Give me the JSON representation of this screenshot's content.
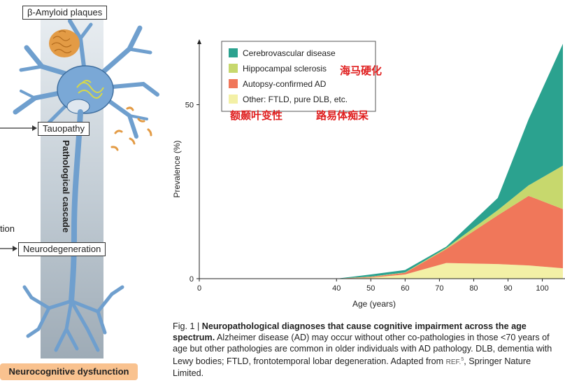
{
  "diagram": {
    "plaques_label": "β-Amyloid plaques",
    "tau_label": "Tauopathy",
    "cascade_label": "Pathological cascade",
    "neurodegeneration_label": "Neurodegeneration",
    "side_label_partial": "tion",
    "outcome_label": "Neurocognitive dysfunction",
    "colors": {
      "neuron": "#6f9fce",
      "neuron_dark": "#3f6e9e",
      "plaque": "#e39b45",
      "tangle": "#d6d84a",
      "outcome_bg": "#f9c28f",
      "cascade_bar": "#b9c4cc"
    }
  },
  "annotations": {
    "hippocampal_cn": "海马硬化",
    "ftld_cn": "额颞叶变性",
    "dlb_cn": "路易体痴呆"
  },
  "chart_data": {
    "type": "area",
    "stacked": true,
    "xlabel": "Age (years)",
    "ylabel": "Prevalence (%)",
    "xlim": [
      0,
      106
    ],
    "ylim": [
      0,
      67
    ],
    "xticks": [
      0,
      40,
      50,
      60,
      70,
      80,
      90,
      100
    ],
    "yticks": [
      0,
      50
    ],
    "x": [
      40,
      50,
      60,
      72,
      87,
      96,
      106
    ],
    "series": [
      {
        "name": "Other: FTLD, pure DLB, etc.",
        "color": "#f3f0a6",
        "values": [
          0,
          0.3,
          1.2,
          4.5,
          4.2,
          3.8,
          3.0
        ]
      },
      {
        "name": "Autopsy-confirmed AD",
        "color": "#f0775a",
        "values": [
          0,
          0.2,
          0.5,
          4.0,
          14.0,
          20.0,
          17.0
        ]
      },
      {
        "name": "Hippocampal sclerosis",
        "color": "#c7d86d",
        "values": [
          0,
          0.1,
          0.1,
          0.3,
          1.5,
          3.0,
          12.5
        ]
      },
      {
        "name": "Cerebrovascular disease",
        "color": "#2ba28f",
        "values": [
          0,
          0.6,
          0.7,
          0.4,
          3.5,
          19.0,
          35.0
        ]
      }
    ],
    "legend_order": [
      "Cerebrovascular disease",
      "Hippocampal sclerosis",
      "Autopsy-confirmed AD",
      "Other: FTLD, pure DLB, etc."
    ],
    "legend_position": "top-left"
  },
  "caption": {
    "fig": "Fig. 1 |",
    "title": "Neuropathological diagnoses that cause cognitive impairment across the age spectrum.",
    "body": "Alzheimer disease (AD) may occur without other co-pathologies in those <70 years of age but other pathologies are common in older individuals with AD pathology. DLB, dementia with Lewy bodies; FTLD, frontotemporal lobar degeneration. Adapted from",
    "ref_word": "REF.",
    "ref_num": "5",
    "tail": ", Springer Nature Limited."
  }
}
